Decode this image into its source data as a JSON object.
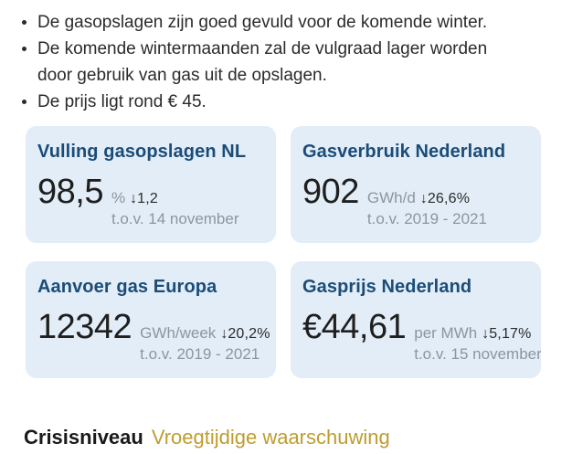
{
  "bullets": [
    "De gasopslagen zijn goed gevuld voor de komende winter.",
    "De komende wintermaanden zal de vulgraad lager worden door gebruik van gas uit de opslagen.",
    "De prijs ligt rond € 45."
  ],
  "cards": [
    {
      "title": "Vulling gasopslagen NL",
      "value": "98,5",
      "unit": "%",
      "arrow": "↓",
      "delta": "1,2",
      "comparison": "t.o.v. 14 november"
    },
    {
      "title": "Gasverbruik Nederland",
      "value": "902",
      "unit": "GWh/d",
      "arrow": "↓",
      "delta": "26,6%",
      "comparison": "t.o.v. 2019 - 2021"
    },
    {
      "title": "Aanvoer gas Europa",
      "value": "12342",
      "unit": "GWh/week",
      "arrow": "↓",
      "delta": "20,2%",
      "comparison": "t.o.v. 2019 - 2021"
    },
    {
      "title": "Gasprijs Nederland",
      "value": "€44,61",
      "unit": "per MWh",
      "arrow": "↓",
      "delta": "5,17%",
      "comparison": "t.o.v. 15 november"
    }
  ],
  "crisis": {
    "label": "Crisisniveau",
    "level": "Vroegtijdige waarschuwing"
  },
  "colors": {
    "card_background": "#e2edf7",
    "card_title": "#1b4c78",
    "value_text": "#1f1f1f",
    "muted_text": "#8a96a0",
    "body_text": "#2b2b2b",
    "crisis_level_gold": "#bf9d2e"
  },
  "icons": {
    "arrow_down": "↓",
    "bullet": "•"
  }
}
